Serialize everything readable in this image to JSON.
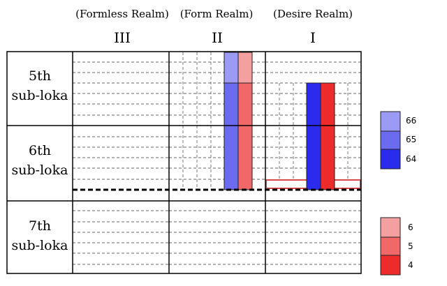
{
  "headers": {
    "realms": [
      {
        "title": "(Formless Realm)",
        "numeral": "III"
      },
      {
        "title": "(Form Realm)",
        "numeral": "II"
      },
      {
        "title": "(Desire Realm)",
        "numeral": "I"
      }
    ]
  },
  "rows": [
    {
      "line1": "5th",
      "line2": "sub-loka"
    },
    {
      "line1": "6th",
      "line2": "sub-loka"
    },
    {
      "line1": "7th",
      "line2": "sub-loka"
    }
  ],
  "legend_blue": [
    {
      "label": "66",
      "color": "#9b9bf5"
    },
    {
      "label": "65",
      "color": "#6b6bf0"
    },
    {
      "label": "64",
      "color": "#2b2bee"
    }
  ],
  "legend_red": [
    {
      "label": "6",
      "color": "#f5a0a0"
    },
    {
      "label": "5",
      "color": "#f06868"
    },
    {
      "label": "4",
      "color": "#ee2b2b"
    }
  ],
  "colors": {
    "blue_light": "#9b9bf5",
    "blue_mid": "#6b6bf0",
    "blue_dark": "#2b2bee",
    "red_light": "#f5a0a0",
    "red_mid": "#f06868",
    "red_dark": "#ee2b2b",
    "highlight_outline": "#d84a4a"
  }
}
